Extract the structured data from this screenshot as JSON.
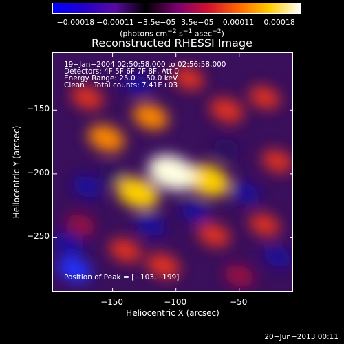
{
  "colorbar": {
    "ticks": [
      "−0.00018",
      "−0.00011",
      "−3.5e−05",
      "3.5e−05",
      "0.00011",
      "0.00018"
    ],
    "units_prefix": "(photons cm",
    "units_exp1": "−2",
    "units_mid": " s",
    "units_exp2": "−1",
    "units_mid2": " asec",
    "units_exp3": "−2",
    "units_suffix": ")",
    "colors": [
      "#0000ff",
      "#2200cc",
      "#5a0aa0",
      "#000000",
      "#7a0070",
      "#d01030",
      "#ff6600",
      "#ffcc00",
      "#ffffff"
    ]
  },
  "chart_data": {
    "type": "heatmap",
    "title": "Reconstructed RHESSI Image",
    "xlabel": "Heliocentric X (arcsec)",
    "ylabel": "Heliocentric Y (arcsec)",
    "xlim": [
      -197,
      -7
    ],
    "ylim": [
      -293,
      -105
    ],
    "xticks": [
      -150,
      -100,
      -50
    ],
    "yticks": [
      -150,
      -200,
      -250
    ],
    "xtick_labels": [
      "−150",
      "−100",
      "−50"
    ],
    "ytick_labels": [
      "−150",
      "−200",
      "−250"
    ],
    "value_range": [
      -0.00018,
      0.00018
    ],
    "peak": [
      -103,
      -199
    ],
    "blobs": [
      {
        "x": -103,
        "y": -199,
        "amp": 1.0
      },
      {
        "x": -75,
        "y": -205,
        "amp": 0.85
      },
      {
        "x": -130,
        "y": -215,
        "amp": 0.8
      },
      {
        "x": -155,
        "y": -172,
        "amp": 0.6
      },
      {
        "x": -120,
        "y": -155,
        "amp": 0.55
      },
      {
        "x": -60,
        "y": -150,
        "amp": 0.5
      },
      {
        "x": -170,
        "y": -140,
        "amp": 0.45
      },
      {
        "x": -140,
        "y": -260,
        "amp": 0.45
      },
      {
        "x": -110,
        "y": -272,
        "amp": 0.5
      },
      {
        "x": -70,
        "y": -248,
        "amp": 0.45
      },
      {
        "x": -30,
        "y": -240,
        "amp": 0.4
      },
      {
        "x": -20,
        "y": -190,
        "amp": 0.4
      },
      {
        "x": -90,
        "y": -125,
        "amp": 0.4
      },
      {
        "x": -175,
        "y": -240,
        "amp": 0.3
      },
      {
        "x": -50,
        "y": -280,
        "amp": 0.35
      },
      {
        "x": -30,
        "y": -140,
        "amp": 0.4
      },
      {
        "x": -120,
        "y": -240,
        "amp": -0.35
      },
      {
        "x": -170,
        "y": -210,
        "amp": -0.35
      },
      {
        "x": -180,
        "y": -275,
        "amp": -0.5
      },
      {
        "x": -185,
        "y": -255,
        "amp": -0.4
      },
      {
        "x": -85,
        "y": -230,
        "amp": -0.3
      },
      {
        "x": -45,
        "y": -215,
        "amp": -0.3
      },
      {
        "x": -130,
        "y": -130,
        "amp": -0.3
      },
      {
        "x": -60,
        "y": -180,
        "amp": -0.25
      },
      {
        "x": -150,
        "y": -200,
        "amp": -0.25
      },
      {
        "x": -20,
        "y": -265,
        "amp": -0.3
      }
    ]
  },
  "info": {
    "line1": "19−Jan−2004 02:50:58.000 to 02:56:58.000",
    "line2": "Detectors: 4F 5F 6F 7F 8F, Att 0",
    "line3": "Energy Range: 25.0 − 50.0 keV",
    "line4": "Clean    Total counts: 7.41E+03",
    "peak_label": "Position of Peak = [−103,−199]"
  },
  "timestamp": "20−Jun−2013 00:11"
}
